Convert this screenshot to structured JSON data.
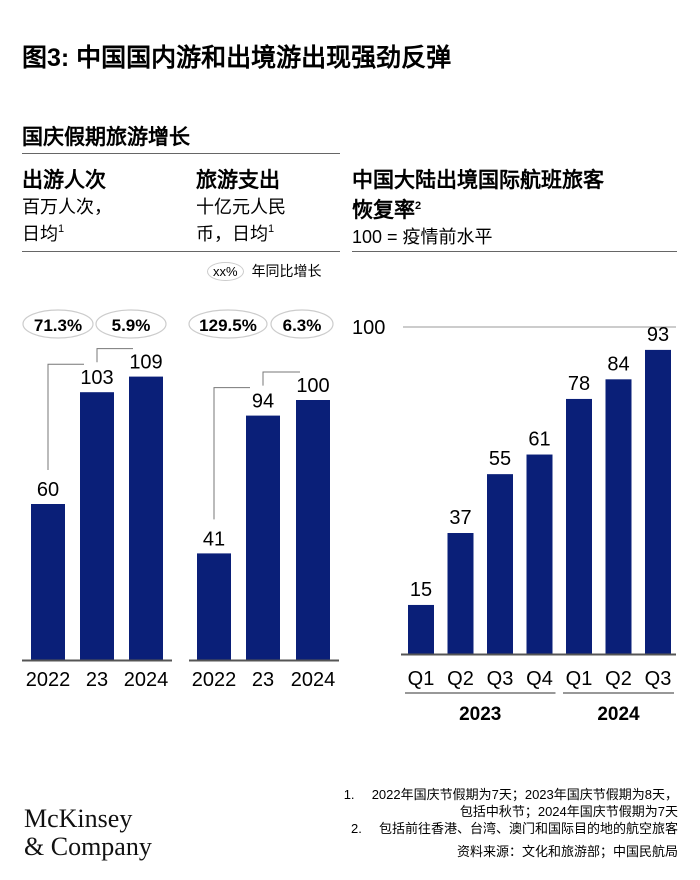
{
  "title": "图3: 中国国内游和出境游出现强劲反弹",
  "section_title": "国庆假期旅游增长",
  "legend": {
    "pill": "xx%",
    "label": "年同比增长"
  },
  "colors": {
    "bar": "#0a1f78",
    "axis": "#555555",
    "pill_border": "#cccccc",
    "gridline": "#999999"
  },
  "chart_data": [
    {
      "type": "bar",
      "title": "出游人次",
      "subtitle_line1": "百万人次，",
      "subtitle_line2": "日均",
      "subtitle_sup": "1",
      "categories": [
        "2022",
        "23",
        "2024"
      ],
      "values": [
        60,
        103,
        109
      ],
      "growth_labels": [
        "71.3%",
        "5.9%"
      ],
      "ylim": [
        0,
        115
      ]
    },
    {
      "type": "bar",
      "title": "旅游支出",
      "subtitle_line1": "十亿元人民",
      "subtitle_line2": "币，日均",
      "subtitle_sup": "1",
      "categories": [
        "2022",
        "23",
        "2024"
      ],
      "values": [
        41,
        94,
        100
      ],
      "growth_labels": [
        "129.5%",
        "6.3%"
      ],
      "ylim": [
        0,
        106
      ]
    },
    {
      "type": "bar",
      "title_line1": "中国大陆出境国际航班旅客",
      "title_line2": "恢复率",
      "title_sup": "2",
      "subtitle": "100 = 疫情前水平",
      "categories": [
        "Q1",
        "Q2",
        "Q3",
        "Q4",
        "Q1",
        "Q2",
        "Q3"
      ],
      "groups": [
        {
          "label": "2023",
          "count": 4
        },
        {
          "label": "2024",
          "count": 3
        }
      ],
      "values": [
        15,
        37,
        55,
        61,
        78,
        84,
        93
      ],
      "reference_line": {
        "value": 100,
        "label": "100"
      },
      "ylim": [
        0,
        100
      ]
    }
  ],
  "footnotes": [
    {
      "num": "1.",
      "line1": "2022年国庆节假期为7天；2023年国庆节假期为8天，",
      "line2": "包括中秋节；2024年国庆节假期为7天"
    },
    {
      "num": "2.",
      "line1": "包括前往香港、台湾、澳门和国际目的地的航空旅客"
    }
  ],
  "source": "资料来源：文化和旅游部；中国民航局",
  "logo": {
    "line1": "McKinsey",
    "line2": "& Company"
  }
}
